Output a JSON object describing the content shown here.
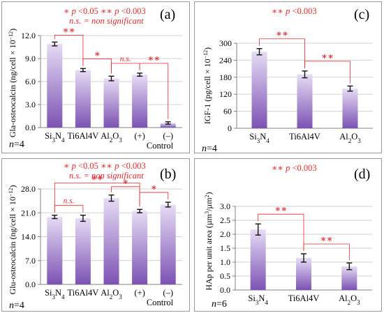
{
  "colors": {
    "bar_top": "#e6dcf5",
    "bar_bottom": "#7c52b3",
    "significance": "#e8282c"
  },
  "panels": {
    "a": {
      "label": "(a)",
      "n_prefix": "n",
      "n_value": "=4",
      "note_line1": [
        "∗",
        "p",
        "<0.05 ",
        "∗∗",
        "p",
        "<0.003"
      ],
      "note_line2": "n.s. = non significant",
      "ylabel": "Gla-osteocalcin (ng/cell × 10",
      "ylabel_exp": "−12",
      "group_label": "Control"
    },
    "b": {
      "label": "(b)",
      "n_prefix": "n",
      "n_value": "=4",
      "note_line1": [
        "∗",
        "p",
        "<0.05 ",
        "∗∗",
        "p",
        "<0.003"
      ],
      "note_line2": "n.s. = non significant",
      "ylabel": "Glu-osteocalcin (ng/cell × 10",
      "ylabel_exp": "−12",
      "group_label": "Control"
    },
    "c": {
      "label": "(c)",
      "n_prefix": "n",
      "n_value": "=4",
      "note_line1": [
        "∗∗",
        "p",
        "<0.003"
      ],
      "ylabel": "IGF-1 (pg/cell × 10",
      "ylabel_exp": "−12"
    },
    "d": {
      "label": "(d)",
      "n_prefix": "n",
      "n_value": "=6",
      "note_line1": [
        "∗∗",
        "p",
        "<0.003"
      ],
      "ylabel": "HAp per unit area (µm",
      "ylabel_exp": "3",
      "ylabel_mid": "/µm",
      "ylabel_exp2": "2"
    }
  },
  "chart_data": [
    {
      "panel": "a",
      "type": "bar",
      "categories": [
        "Si3N4",
        "Ti6Al4V",
        "Al2O3",
        "(+)",
        "(–)"
      ],
      "values": [
        10.9,
        7.5,
        6.4,
        6.9,
        0.6
      ],
      "errors": [
        0.25,
        0.2,
        0.3,
        0.2,
        0.15
      ],
      "ylim": [
        0,
        12
      ],
      "yticks": [
        "0.0",
        "3.0",
        "6.0",
        "9.0",
        "12.0"
      ],
      "significance": [
        {
          "from": 0,
          "to": 1,
          "label": "∗∗"
        },
        {
          "from": 1,
          "to": 2,
          "label": "∗"
        },
        {
          "from": 2,
          "to": 3,
          "label": "n.s."
        },
        {
          "from": 3,
          "to": 4,
          "label": "∗∗"
        }
      ]
    },
    {
      "panel": "b",
      "type": "bar",
      "categories": [
        "Si3N4",
        "Ti6Al4V",
        "Al2O3",
        "(+)",
        "(–)"
      ],
      "values": [
        19.8,
        19.4,
        25.3,
        21.5,
        23.4
      ],
      "errors": [
        0.5,
        0.9,
        0.9,
        0.5,
        0.7
      ],
      "ylim": [
        0,
        28
      ],
      "yticks": [
        "0.0",
        "7.0",
        "14.0",
        "21.0",
        "28.0"
      ],
      "significance": [
        {
          "from": 0,
          "to": 1,
          "label": "n.s."
        },
        {
          "from": 0,
          "to": 3,
          "label": "∗∗"
        },
        {
          "from": 2,
          "to": 3,
          "label": "∗"
        },
        {
          "from": 3,
          "to": 4,
          "label": "∗"
        }
      ]
    },
    {
      "panel": "c",
      "type": "bar",
      "categories": [
        "Si3N4",
        "Ti6Al4V",
        "Al2O3"
      ],
      "values": [
        270,
        190,
        140
      ],
      "errors": [
        11,
        12,
        9
      ],
      "ylim": [
        0,
        300
      ],
      "yticks": [
        "0",
        "60",
        "120",
        "180",
        "240",
        "300"
      ],
      "significance": [
        {
          "from": 0,
          "to": 1,
          "label": "∗∗"
        },
        {
          "from": 1,
          "to": 2,
          "label": "∗∗"
        }
      ]
    },
    {
      "panel": "d",
      "type": "bar",
      "categories": [
        "Si3N4",
        "Ti6Al4V",
        "Al2O3"
      ],
      "values": [
        2.17,
        1.15,
        0.85
      ],
      "errors": [
        0.2,
        0.15,
        0.12
      ],
      "ylim": [
        0,
        3.0
      ],
      "yticks": [
        "0.0",
        "0.5",
        "1.0",
        "1.5",
        "2.0",
        "2.5",
        "3.0"
      ],
      "significance": [
        {
          "from": 0,
          "to": 1,
          "label": "∗∗"
        },
        {
          "from": 1,
          "to": 2,
          "label": "∗∗"
        }
      ]
    }
  ]
}
